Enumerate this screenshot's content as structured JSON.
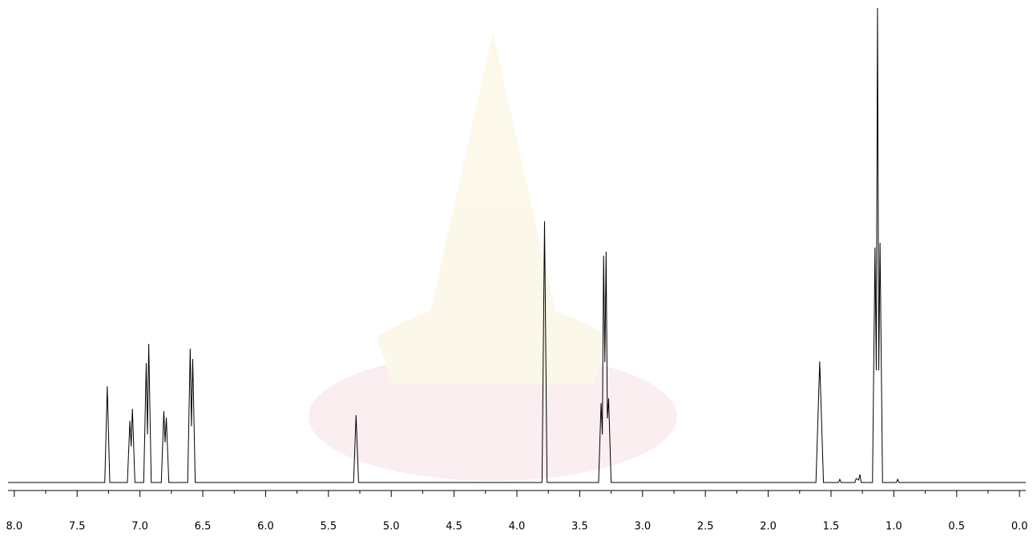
{
  "chart_data": {
    "type": "line",
    "color": "#000000",
    "x": [
      8.05,
      7.28,
      7.26,
      7.24,
      7.1,
      7.08,
      7.07,
      7.06,
      7.04,
      6.97,
      6.95,
      6.94,
      6.93,
      6.91,
      6.83,
      6.81,
      6.8,
      6.79,
      6.77,
      6.62,
      6.6,
      6.59,
      6.58,
      6.56,
      5.3,
      5.28,
      5.26,
      3.8,
      3.78,
      3.76,
      3.35,
      3.33,
      3.32,
      3.31,
      3.3,
      3.29,
      3.28,
      3.27,
      3.25,
      1.62,
      1.59,
      1.56,
      1.44,
      1.43,
      1.42,
      1.31,
      1.3,
      1.28,
      1.27,
      1.26,
      1.17,
      1.15,
      1.14,
      1.13,
      1.12,
      1.11,
      1.09,
      0.98,
      0.97,
      0.96,
      -0.05
    ],
    "values": [
      0,
      0,
      120,
      0,
      0,
      77,
      45,
      92,
      0,
      0,
      149,
      60,
      173,
      0,
      0,
      89,
      50,
      81,
      0,
      0,
      167,
      70,
      154,
      0,
      0,
      84,
      0,
      0,
      326,
      0,
      0,
      99,
      60,
      283,
      150,
      288,
      80,
      105,
      0,
      0,
      151,
      0,
      0,
      4,
      0,
      0,
      5,
      3,
      10,
      0,
      0,
      293,
      140,
      592,
      140,
      299,
      0,
      0,
      4,
      0,
      0
    ],
    "xlim": [
      8.05,
      -0.05
    ],
    "ylim": [
      0,
      592
    ],
    "xticks": [
      {
        "value": 8,
        "label": "8.0"
      },
      {
        "value": 7.5,
        "label": "7.5"
      },
      {
        "value": 7,
        "label": "7.0"
      },
      {
        "value": 6.5,
        "label": "6.5"
      },
      {
        "value": 6,
        "label": "6.0"
      },
      {
        "value": 5.5,
        "label": "5.5"
      },
      {
        "value": 5,
        "label": "5.0"
      },
      {
        "value": 4.5,
        "label": "4.5"
      },
      {
        "value": 4,
        "label": "4.0"
      },
      {
        "value": 3.5,
        "label": "3.5"
      },
      {
        "value": 3,
        "label": "3.0"
      },
      {
        "value": 2.5,
        "label": "2.5"
      },
      {
        "value": 2,
        "label": "2.0"
      },
      {
        "value": 1.5,
        "label": "1.5"
      },
      {
        "value": 1,
        "label": "1.0"
      },
      {
        "value": 0.5,
        "label": "0.5"
      },
      {
        "value": 0,
        "label": "0.0"
      }
    ],
    "xminorticks": [
      7.75,
      7.25,
      6.75,
      6.25,
      5.75,
      5.25,
      4.75,
      4.25,
      3.75,
      3.25,
      2.75,
      2.25,
      1.75,
      1.25,
      0.75,
      0.25
    ]
  }
}
